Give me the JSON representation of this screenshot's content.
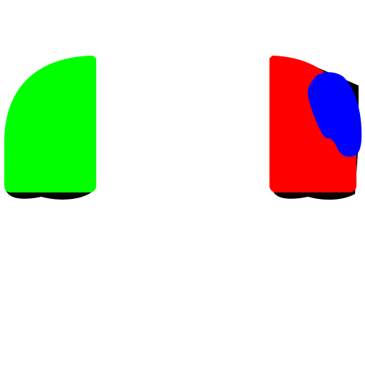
{
  "colors": {
    "background": "#ffffff",
    "left_shape": "#00ff00",
    "right_shape": "#ff0000",
    "blob": "#0000ff",
    "shadow": "#000000"
  },
  "shapes": {
    "left": {
      "name": "green-rounded-shape"
    },
    "right": {
      "name": "red-rounded-shape"
    },
    "blob": {
      "name": "blue-blob"
    }
  }
}
